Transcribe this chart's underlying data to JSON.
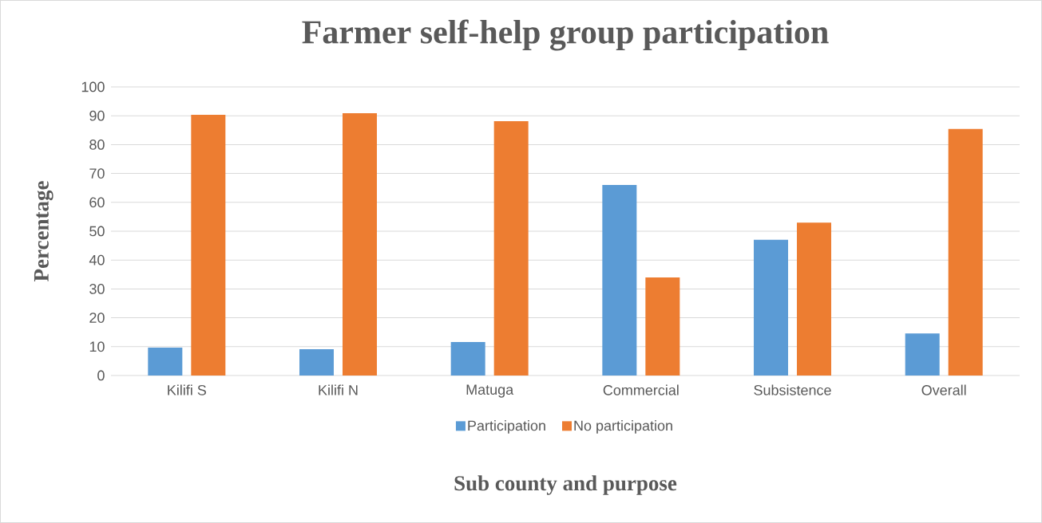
{
  "chart_data": {
    "type": "bar",
    "title": "Farmer self-help group participation",
    "xlabel": "Sub county and purpose",
    "ylabel": "Percentage",
    "categories": [
      "Kilifi S",
      "Kilifi N",
      "Matuga",
      "Commercial",
      "Subsistence",
      "Overall"
    ],
    "series": [
      {
        "name": "Participation",
        "color": "#5b9bd5",
        "values": [
          9.7,
          9.1,
          11.6,
          66,
          47,
          14.6
        ]
      },
      {
        "name": "No participation",
        "color": "#ed7d31",
        "values": [
          90.3,
          90.9,
          88.1,
          34,
          53,
          85.4
        ]
      }
    ],
    "ylim": [
      0,
      100
    ],
    "yticks": [
      0,
      10,
      20,
      30,
      40,
      50,
      60,
      70,
      80,
      90,
      100
    ],
    "grid": "y",
    "legend": "bottom"
  }
}
